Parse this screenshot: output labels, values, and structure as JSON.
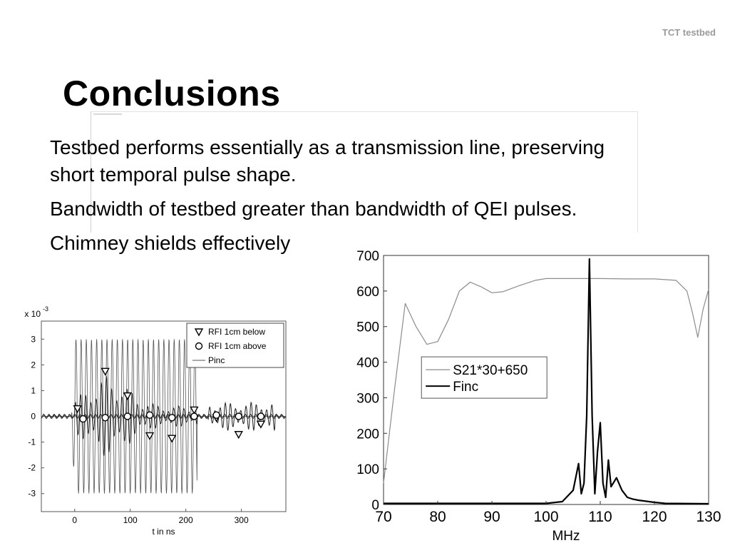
{
  "slide": {
    "header_tag": "TCT testbed",
    "title": "Conclusions",
    "bullets": [
      "Testbed performs essentially as a transmission line, preserving short temporal pulse shape.",
      "Bandwidth of testbed greater than bandwidth of QEI pulses.",
      "Chimney shields effectively"
    ]
  },
  "chart_data": [
    {
      "type": "line",
      "scale_label": "x 10",
      "scale_exponent": "-3",
      "xlabel": "t in ns",
      "xlim": [
        -60,
        380
      ],
      "ylim": [
        -3.7,
        3.7
      ],
      "x_ticks": [
        0,
        100,
        200,
        300
      ],
      "y_ticks": [
        3,
        2,
        1,
        0,
        -1,
        -2,
        -3
      ],
      "legend_position": "top-right",
      "series": [
        {
          "name": "RFI 1cm below",
          "marker": "triangle-down",
          "points": [
            [
              5,
              0.3
            ],
            [
              55,
              1.75
            ],
            [
              95,
              0.8
            ],
            [
              135,
              -0.75
            ],
            [
              175,
              -0.85
            ],
            [
              215,
              0.25
            ],
            [
              255,
              -0.05
            ],
            [
              295,
              -0.7
            ],
            [
              335,
              -0.3
            ]
          ]
        },
        {
          "name": "RFI 1cm above",
          "marker": "circle",
          "points": [
            [
              15,
              -0.1
            ],
            [
              55,
              -0.05
            ],
            [
              95,
              0.0
            ],
            [
              135,
              0.05
            ],
            [
              175,
              -0.05
            ],
            [
              215,
              0.0
            ],
            [
              255,
              0.05
            ],
            [
              295,
              0.0
            ],
            [
              335,
              0.0
            ]
          ]
        },
        {
          "name": "Pinc",
          "marker": "line",
          "amplitude": 3.0,
          "t_start": 0,
          "t_end": 220,
          "period_ns": 9.3
        }
      ]
    },
    {
      "type": "line",
      "xlabel": "MHz",
      "xlim": [
        70,
        130
      ],
      "ylim": [
        0,
        700
      ],
      "x_ticks": [
        70,
        80,
        90,
        100,
        110,
        120,
        130
      ],
      "y_ticks": [
        0,
        100,
        200,
        300,
        400,
        500,
        600,
        700
      ],
      "legend_position": "center-left",
      "series": [
        {
          "name": "S21*30+650",
          "color": "#8c8c8c",
          "points": [
            [
              70,
              60
            ],
            [
              72,
              320
            ],
            [
              74,
              565
            ],
            [
              76,
              500
            ],
            [
              78,
              450
            ],
            [
              80,
              458
            ],
            [
              82,
              520
            ],
            [
              84,
              600
            ],
            [
              86,
              625
            ],
            [
              88,
              612
            ],
            [
              90,
              595
            ],
            [
              92,
              598
            ],
            [
              95,
              615
            ],
            [
              98,
              630
            ],
            [
              100,
              635
            ],
            [
              105,
              635
            ],
            [
              110,
              635
            ],
            [
              115,
              634
            ],
            [
              120,
              634
            ],
            [
              124,
              630
            ],
            [
              126,
              600
            ],
            [
              127,
              540
            ],
            [
              128,
              470
            ],
            [
              129,
              550
            ],
            [
              130,
              605
            ]
          ]
        },
        {
          "name": "Finc",
          "color": "#000000",
          "points": [
            [
              70,
              3
            ],
            [
              100,
              3
            ],
            [
              103,
              8
            ],
            [
              105,
              40
            ],
            [
              106,
              115
            ],
            [
              106.5,
              30
            ],
            [
              107,
              60
            ],
            [
              107.5,
              250
            ],
            [
              108,
              690
            ],
            [
              108.5,
              250
            ],
            [
              109,
              30
            ],
            [
              109.5,
              150
            ],
            [
              110,
              230
            ],
            [
              110.5,
              60
            ],
            [
              111,
              20
            ],
            [
              111.5,
              125
            ],
            [
              112,
              50
            ],
            [
              113,
              75
            ],
            [
              114,
              40
            ],
            [
              115,
              20
            ],
            [
              116,
              15
            ],
            [
              117,
              12
            ],
            [
              118,
              10
            ],
            [
              119,
              8
            ],
            [
              120,
              6
            ],
            [
              122,
              3
            ],
            [
              130,
              2
            ]
          ]
        }
      ]
    }
  ]
}
